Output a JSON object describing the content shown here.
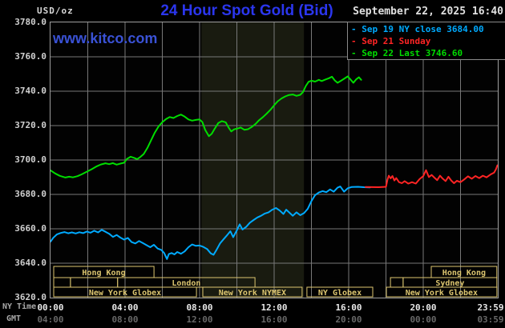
{
  "header": {
    "unit_label": "USD/oz",
    "title": "24 Hour Spot Gold (Bid)",
    "title_color": "#2b36ee",
    "datetime": "September 22, 2025 16:40",
    "watermark": "www.kitco.com",
    "watermark_color": "#3a52d6"
  },
  "legend": {
    "marker": "-",
    "items": [
      {
        "label": "Sep 19 NY close 3684.00",
        "color": "#00aaff"
      },
      {
        "label": "Sep 21 Sunday",
        "color": "#ff2424"
      },
      {
        "label": "Sep 22 Last 3746.60",
        "color": "#00dd00"
      }
    ]
  },
  "y_axis": {
    "ticks": [
      "3780.0",
      "3760.0",
      "3740.0",
      "3720.0",
      "3700.0",
      "3680.0",
      "3660.0",
      "3640.0",
      "3620.0"
    ]
  },
  "x_axis": {
    "ny_label": "NY Time",
    "gmt_label": "GMT",
    "ny_ticks": [
      "00:00",
      "04:00",
      "08:00",
      "12:00",
      "16:00",
      "20:00",
      "23:59"
    ],
    "gmt_ticks": [
      "04:00",
      "08:00",
      "12:00",
      "16:00",
      "20:00",
      "00:00",
      "03:59"
    ]
  },
  "chart_data": {
    "type": "line",
    "title": "24 Hour Spot Gold (Bid)",
    "ylabel": "USD/oz",
    "xlabel": "NY Time",
    "xlim_hours": [
      0,
      24
    ],
    "ylim": [
      3620,
      3780
    ],
    "x_grid_step_hours": 2,
    "y_grid_step": 20,
    "grid": true,
    "grid_color": "#787878",
    "border_color": "#a0a0a0",
    "nymex_band": {
      "x1_hours": 8.1,
      "x2_hours": 13.6,
      "color": "#191b10"
    },
    "session_color": "#ddc670",
    "sessions": [
      {
        "label": "Hong Kong",
        "row": 0,
        "x1_hours": 0.17,
        "x2_hours": 5.55
      },
      {
        "label": "",
        "row": 1,
        "x1_hours": 0.17,
        "x2_hours": 1.07
      },
      {
        "label": "",
        "row": 1,
        "x1_hours": 1.07,
        "x2_hours": 3.6
      },
      {
        "label": "London",
        "row": 1,
        "x1_hours": 3.6,
        "x2_hours": 10.97
      },
      {
        "label": "",
        "row": 1,
        "x1_hours": 18.24,
        "x2_hours": 18.92
      },
      {
        "label": "Sydney",
        "row": 1,
        "x1_hours": 18.92,
        "x2_hours": 23.95
      },
      {
        "label": "Hong Kong",
        "row": 0,
        "x1_hours": 20.43,
        "x2_hours": 23.95
      },
      {
        "label": "New York Globex",
        "row": 2,
        "x1_hours": 0.17,
        "x2_hours": 7.83
      },
      {
        "label": "New York NYMEX",
        "row": 2,
        "x1_hours": 8.17,
        "x2_hours": 13.5
      },
      {
        "label": "NY Globex",
        "row": 2,
        "x1_hours": 13.76,
        "x2_hours": 17.29
      },
      {
        "label": "New York Globex",
        "row": 2,
        "x1_hours": 18.02,
        "x2_hours": 23.95
      }
    ],
    "series": [
      {
        "name": "Sep 19 NY close 3684.00",
        "color": "#00aaff",
        "points": [
          [
            0,
            3652.5
          ],
          [
            0.15,
            3654.8
          ],
          [
            0.35,
            3656.8
          ],
          [
            0.55,
            3657.6
          ],
          [
            0.75,
            3658.1
          ],
          [
            0.95,
            3657.4
          ],
          [
            1.15,
            3657.9
          ],
          [
            1.35,
            3657.3
          ],
          [
            1.55,
            3658
          ],
          [
            1.75,
            3657.5
          ],
          [
            1.95,
            3658.4
          ],
          [
            2.15,
            3657.7
          ],
          [
            2.35,
            3658.9
          ],
          [
            2.55,
            3657.9
          ],
          [
            2.75,
            3659.4
          ],
          [
            2.95,
            3658.3
          ],
          [
            3.15,
            3657.1
          ],
          [
            3.35,
            3655.3
          ],
          [
            3.55,
            3656.4
          ],
          [
            3.75,
            3654.9
          ],
          [
            3.95,
            3653.7
          ],
          [
            4.15,
            3654.7
          ],
          [
            4.35,
            3652.3
          ],
          [
            4.55,
            3651.5
          ],
          [
            4.75,
            3652.9
          ],
          [
            4.95,
            3651.7
          ],
          [
            5.15,
            3650.5
          ],
          [
            5.35,
            3649.3
          ],
          [
            5.55,
            3650.7
          ],
          [
            5.75,
            3648.5
          ],
          [
            5.95,
            3647.7
          ],
          [
            6.1,
            3645.9
          ],
          [
            6.25,
            3642.4
          ],
          [
            6.35,
            3645.3
          ],
          [
            6.5,
            3645.9
          ],
          [
            6.65,
            3645.1
          ],
          [
            6.8,
            3646.5
          ],
          [
            7,
            3645.5
          ],
          [
            7.2,
            3646.9
          ],
          [
            7.4,
            3649.3
          ],
          [
            7.6,
            3650.9
          ],
          [
            7.8,
            3650.1
          ],
          [
            8,
            3650.3
          ],
          [
            8.2,
            3649.5
          ],
          [
            8.4,
            3648.3
          ],
          [
            8.6,
            3645.7
          ],
          [
            8.75,
            3644.9
          ],
          [
            8.9,
            3647.6
          ],
          [
            9.1,
            3651.6
          ],
          [
            9.3,
            3654.1
          ],
          [
            9.5,
            3656.6
          ],
          [
            9.65,
            3658.6
          ],
          [
            9.8,
            3655.1
          ],
          [
            10,
            3659.1
          ],
          [
            10.15,
            3662.6
          ],
          [
            10.3,
            3659.6
          ],
          [
            10.5,
            3661.1
          ],
          [
            10.7,
            3663.6
          ],
          [
            10.9,
            3665.1
          ],
          [
            11.1,
            3666.6
          ],
          [
            11.3,
            3667.6
          ],
          [
            11.5,
            3668.9
          ],
          [
            11.7,
            3669.6
          ],
          [
            11.9,
            3671.1
          ],
          [
            12.1,
            3672.1
          ],
          [
            12.3,
            3670.6
          ],
          [
            12.5,
            3668.6
          ],
          [
            12.65,
            3671.1
          ],
          [
            12.8,
            3669.6
          ],
          [
            13,
            3667.6
          ],
          [
            13.2,
            3669.6
          ],
          [
            13.4,
            3667.9
          ],
          [
            13.6,
            3669.1
          ],
          [
            13.8,
            3671.6
          ],
          [
            14,
            3676.1
          ],
          [
            14.2,
            3679.6
          ],
          [
            14.4,
            3681.1
          ],
          [
            14.6,
            3681.9
          ],
          [
            14.8,
            3681.3
          ],
          [
            15,
            3682.9
          ],
          [
            15.2,
            3681.6
          ],
          [
            15.4,
            3683.9
          ],
          [
            15.55,
            3684.6
          ],
          [
            15.75,
            3681.6
          ],
          [
            15.95,
            3683.6
          ],
          [
            16.15,
            3684.3
          ],
          [
            16.5,
            3684.4
          ],
          [
            16.8,
            3684.2
          ],
          [
            17.15,
            3684.1
          ]
        ]
      },
      {
        "name": "Sep 21 Sunday",
        "color": "#ff2424",
        "points": [
          [
            16.9,
            3684.3
          ],
          [
            17.6,
            3684.2
          ],
          [
            18,
            3684.4
          ],
          [
            18.08,
            3688.6
          ],
          [
            18.15,
            3690.9
          ],
          [
            18.25,
            3689.3
          ],
          [
            18.35,
            3690.7
          ],
          [
            18.45,
            3688.1
          ],
          [
            18.55,
            3689.5
          ],
          [
            18.7,
            3687.1
          ],
          [
            18.85,
            3686.5
          ],
          [
            19,
            3687.7
          ],
          [
            19.2,
            3686.3
          ],
          [
            19.4,
            3687.1
          ],
          [
            19.6,
            3686.3
          ],
          [
            19.8,
            3688.9
          ],
          [
            20,
            3690.6
          ],
          [
            20.15,
            3694.1
          ],
          [
            20.3,
            3690.1
          ],
          [
            20.45,
            3691.3
          ],
          [
            20.6,
            3689.7
          ],
          [
            20.75,
            3688.3
          ],
          [
            20.9,
            3690.9
          ],
          [
            21.05,
            3689.1
          ],
          [
            21.2,
            3687.7
          ],
          [
            21.35,
            3690.3
          ],
          [
            21.5,
            3688.1
          ],
          [
            21.65,
            3686.5
          ],
          [
            21.8,
            3687.9
          ],
          [
            22,
            3687.1
          ],
          [
            22.2,
            3688.7
          ],
          [
            22.4,
            3690.5
          ],
          [
            22.6,
            3689.1
          ],
          [
            22.8,
            3690.7
          ],
          [
            23,
            3689.5
          ],
          [
            23.2,
            3690.9
          ],
          [
            23.4,
            3689.9
          ],
          [
            23.6,
            3691.5
          ],
          [
            23.8,
            3692.7
          ],
          [
            23.9,
            3694.6
          ],
          [
            23.98,
            3696.9
          ]
        ]
      },
      {
        "name": "Sep 22 Last 3746.60",
        "color": "#00dd00",
        "points": [
          [
            0,
            3694
          ],
          [
            0.25,
            3692.2
          ],
          [
            0.5,
            3690.8
          ],
          [
            0.8,
            3689.8
          ],
          [
            1,
            3690.3
          ],
          [
            1.2,
            3689.9
          ],
          [
            1.45,
            3690.6
          ],
          [
            1.7,
            3691.8
          ],
          [
            1.95,
            3693.2
          ],
          [
            2.2,
            3694.6
          ],
          [
            2.45,
            3696.2
          ],
          [
            2.7,
            3697.4
          ],
          [
            2.95,
            3698.1
          ],
          [
            3.15,
            3697.6
          ],
          [
            3.35,
            3698.2
          ],
          [
            3.55,
            3697.3
          ],
          [
            3.75,
            3697.9
          ],
          [
            3.95,
            3698.4
          ],
          [
            4.1,
            3700.6
          ],
          [
            4.3,
            3701.9
          ],
          [
            4.5,
            3701.2
          ],
          [
            4.65,
            3700.5
          ],
          [
            4.8,
            3701.6
          ],
          [
            5,
            3703.5
          ],
          [
            5.2,
            3707
          ],
          [
            5.4,
            3711.5
          ],
          [
            5.6,
            3716
          ],
          [
            5.8,
            3719.5
          ],
          [
            6,
            3722
          ],
          [
            6.2,
            3723.8
          ],
          [
            6.4,
            3725
          ],
          [
            6.6,
            3724.4
          ],
          [
            6.8,
            3725.6
          ],
          [
            7,
            3726.4
          ],
          [
            7.2,
            3725.2
          ],
          [
            7.4,
            3723.6
          ],
          [
            7.6,
            3722.9
          ],
          [
            7.8,
            3723.3
          ],
          [
            8,
            3723.6
          ],
          [
            8.15,
            3722
          ],
          [
            8.3,
            3717.5
          ],
          [
            8.5,
            3713.8
          ],
          [
            8.65,
            3715.2
          ],
          [
            8.8,
            3718
          ],
          [
            9,
            3721.5
          ],
          [
            9.2,
            3722.6
          ],
          [
            9.4,
            3721.9
          ],
          [
            9.55,
            3719
          ],
          [
            9.7,
            3716.6
          ],
          [
            9.85,
            3717.8
          ],
          [
            10,
            3718.2
          ],
          [
            10.2,
            3718.9
          ],
          [
            10.4,
            3717.6
          ],
          [
            10.6,
            3717.9
          ],
          [
            10.8,
            3719.2
          ],
          [
            11,
            3721
          ],
          [
            11.2,
            3723.2
          ],
          [
            11.4,
            3725
          ],
          [
            11.6,
            3727
          ],
          [
            11.8,
            3729.2
          ],
          [
            12,
            3731.8
          ],
          [
            12.2,
            3734.2
          ],
          [
            12.4,
            3735.8
          ],
          [
            12.6,
            3737
          ],
          [
            12.8,
            3737.8
          ],
          [
            13,
            3738.1
          ],
          [
            13.2,
            3737.3
          ],
          [
            13.4,
            3737.9
          ],
          [
            13.55,
            3739.5
          ],
          [
            13.7,
            3743
          ],
          [
            13.85,
            3745.5
          ],
          [
            14,
            3746.1
          ],
          [
            14.2,
            3745.6
          ],
          [
            14.4,
            3746.6
          ],
          [
            14.55,
            3745.9
          ],
          [
            14.75,
            3746.8
          ],
          [
            14.95,
            3747.6
          ],
          [
            15.1,
            3748.4
          ],
          [
            15.25,
            3746.3
          ],
          [
            15.4,
            3744.9
          ],
          [
            15.55,
            3745.8
          ],
          [
            15.75,
            3747.2
          ],
          [
            15.95,
            3748.6
          ],
          [
            16.1,
            3746.8
          ],
          [
            16.25,
            3744.9
          ],
          [
            16.4,
            3746.9
          ],
          [
            16.55,
            3748.1
          ],
          [
            16.67,
            3746.6
          ]
        ]
      }
    ]
  },
  "text_colors": {
    "ny_tick": "#e8e8e8",
    "gmt_tick": "#686868",
    "axis_name": "#a8a8a8",
    "y_tick": "#d0d0d0"
  }
}
